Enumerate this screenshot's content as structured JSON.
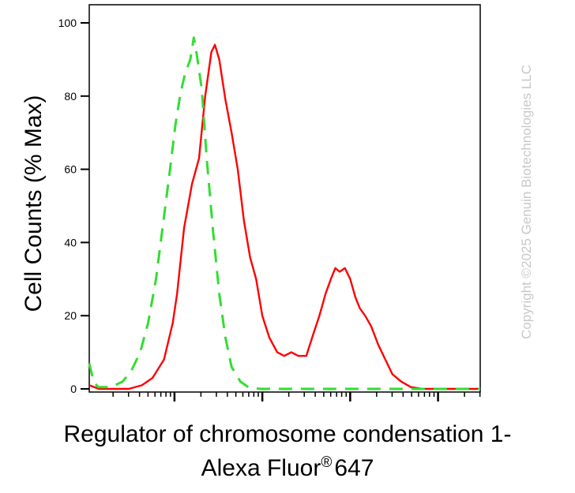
{
  "chart_data": {
    "type": "line",
    "ylabel": "Cell Counts (% Max)",
    "xlabel_line1": "Regulator of chromosome condensation 1-",
    "xlabel_line2_text": "Alexa Fluor",
    "xlabel_line2_sup": "®",
    "xlabel_line2_num": "647",
    "watermark": "Copyright ©2025 Genuin Biotechnologies LLC",
    "ylim": [
      0,
      100
    ],
    "xscale": "log",
    "x_decades": 4.45,
    "y_ticks": [
      0,
      20,
      40,
      60,
      80,
      100
    ],
    "y_tick_labels": [
      "0",
      "20",
      "40",
      "60",
      "80",
      "100"
    ],
    "series": [
      {
        "style": "solid",
        "color": "#ff0000",
        "points": [
          [
            0,
            1
          ],
          [
            0.11,
            0
          ],
          [
            0.27,
            0
          ],
          [
            0.45,
            0
          ],
          [
            0.6,
            1
          ],
          [
            0.72,
            3
          ],
          [
            0.85,
            8
          ],
          [
            0.95,
            18
          ],
          [
            1.0,
            26
          ],
          [
            1.08,
            44
          ],
          [
            1.17,
            56
          ],
          [
            1.25,
            63
          ],
          [
            1.32,
            80
          ],
          [
            1.39,
            92
          ],
          [
            1.43,
            94
          ],
          [
            1.48,
            90
          ],
          [
            1.55,
            79
          ],
          [
            1.62,
            70
          ],
          [
            1.69,
            60
          ],
          [
            1.76,
            46
          ],
          [
            1.83,
            36
          ],
          [
            1.9,
            30
          ],
          [
            1.97,
            20
          ],
          [
            2.05,
            14
          ],
          [
            2.14,
            10
          ],
          [
            2.22,
            9
          ],
          [
            2.3,
            10
          ],
          [
            2.38,
            9
          ],
          [
            2.47,
            9
          ],
          [
            2.55,
            15
          ],
          [
            2.62,
            20
          ],
          [
            2.69,
            26
          ],
          [
            2.75,
            30
          ],
          [
            2.8,
            33
          ],
          [
            2.85,
            32
          ],
          [
            2.91,
            33
          ],
          [
            2.97,
            30
          ],
          [
            3.03,
            25
          ],
          [
            3.08,
            22
          ],
          [
            3.14,
            20
          ],
          [
            3.21,
            17
          ],
          [
            3.29,
            12
          ],
          [
            3.37,
            8
          ],
          [
            3.45,
            4
          ],
          [
            3.55,
            2
          ],
          [
            3.66,
            0.5
          ],
          [
            3.8,
            0
          ],
          [
            4.1,
            0
          ],
          [
            4.45,
            0
          ]
        ]
      },
      {
        "style": "dashed",
        "color": "#33dd33",
        "points": [
          [
            0,
            7
          ],
          [
            0.05,
            2
          ],
          [
            0.1,
            0.5
          ],
          [
            0.25,
            0.5
          ],
          [
            0.38,
            2
          ],
          [
            0.48,
            5
          ],
          [
            0.58,
            10
          ],
          [
            0.67,
            18
          ],
          [
            0.76,
            30
          ],
          [
            0.85,
            47
          ],
          [
            0.92,
            60
          ],
          [
            0.98,
            72
          ],
          [
            1.04,
            81
          ],
          [
            1.09,
            86
          ],
          [
            1.15,
            90
          ],
          [
            1.19,
            96
          ],
          [
            1.22,
            92
          ],
          [
            1.28,
            82
          ],
          [
            1.34,
            62
          ],
          [
            1.41,
            43
          ],
          [
            1.48,
            26
          ],
          [
            1.55,
            14
          ],
          [
            1.62,
            6
          ],
          [
            1.72,
            2
          ],
          [
            1.82,
            0.3
          ],
          [
            1.95,
            0
          ],
          [
            4.45,
            0
          ]
        ]
      }
    ]
  }
}
